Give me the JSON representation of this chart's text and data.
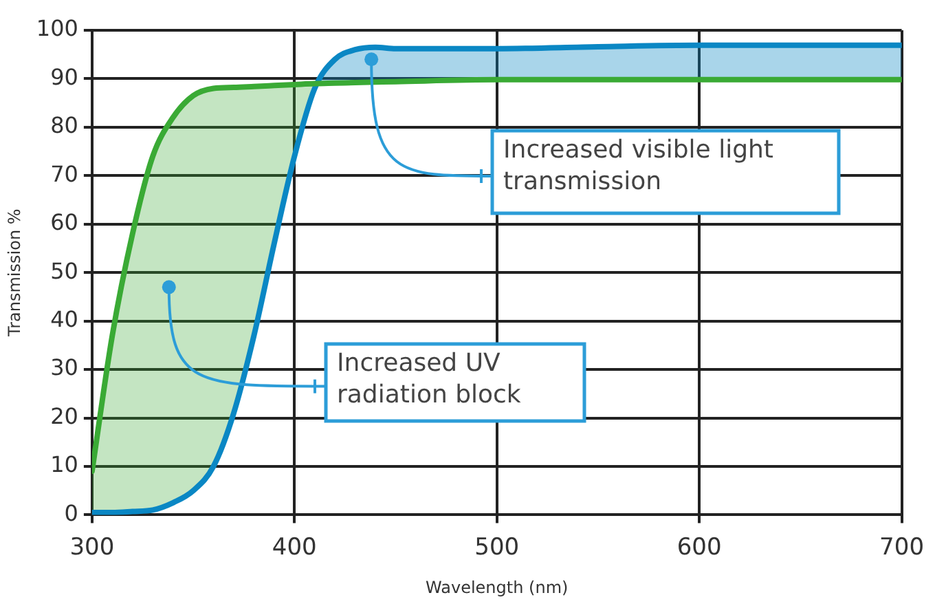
{
  "chart_data": {
    "type": "line",
    "xlabel": "Wavelength (nm)",
    "ylabel": "Transmission %",
    "x": [
      300,
      310,
      320,
      330,
      340,
      350,
      360,
      370,
      380,
      390,
      400,
      410,
      420,
      430,
      440,
      450,
      500,
      550,
      600,
      650,
      700
    ],
    "series": [
      {
        "color": "#3aaa35",
        "values": [
          9,
          37,
          58,
          74,
          82,
          86.5,
          88,
          88.2,
          88.4,
          88.6,
          88.8,
          89,
          89.1,
          89.2,
          89.3,
          89.4,
          89.8,
          89.8,
          89.8,
          89.8,
          89.8
        ]
      },
      {
        "color": "#0a87c4",
        "values": [
          0.5,
          0.5,
          0.7,
          1,
          2.5,
          5,
          10,
          21,
          37,
          56,
          74,
          88,
          94,
          96,
          96.5,
          96.2,
          96.2,
          96.6,
          96.9,
          96.9,
          96.9
        ],
        "lower": [
          9,
          37,
          58,
          74,
          82,
          86.5,
          88,
          88.2,
          88.4,
          88.6,
          88.8,
          89,
          89.1,
          89.2,
          89.3,
          89.4,
          89.8,
          89.8,
          89.8,
          89.8,
          89.8
        ],
        "upper": [
          0.5,
          0.5,
          0.7,
          1,
          2.5,
          5,
          10,
          21,
          37,
          56,
          74,
          88,
          94,
          96,
          96.5,
          96.2,
          96.2,
          96.6,
          96.9,
          96.9,
          96.9
        ]
      }
    ],
    "xlim": [
      300,
      700
    ],
    "xticks": [
      300,
      400,
      500,
      600,
      700
    ],
    "ylim": [
      0,
      100
    ],
    "yticks": [
      0,
      10,
      20,
      30,
      40,
      50,
      60,
      70,
      80,
      90,
      100
    ],
    "grid": true,
    "legend": false,
    "marker": "none",
    "line_style": "solid",
    "annotations": [
      {
        "text": "Increased visible light transmission",
        "x": 438,
        "y": 94
      },
      {
        "text": "Increased UV radiation block",
        "x": 338,
        "y": 47
      }
    ]
  }
}
